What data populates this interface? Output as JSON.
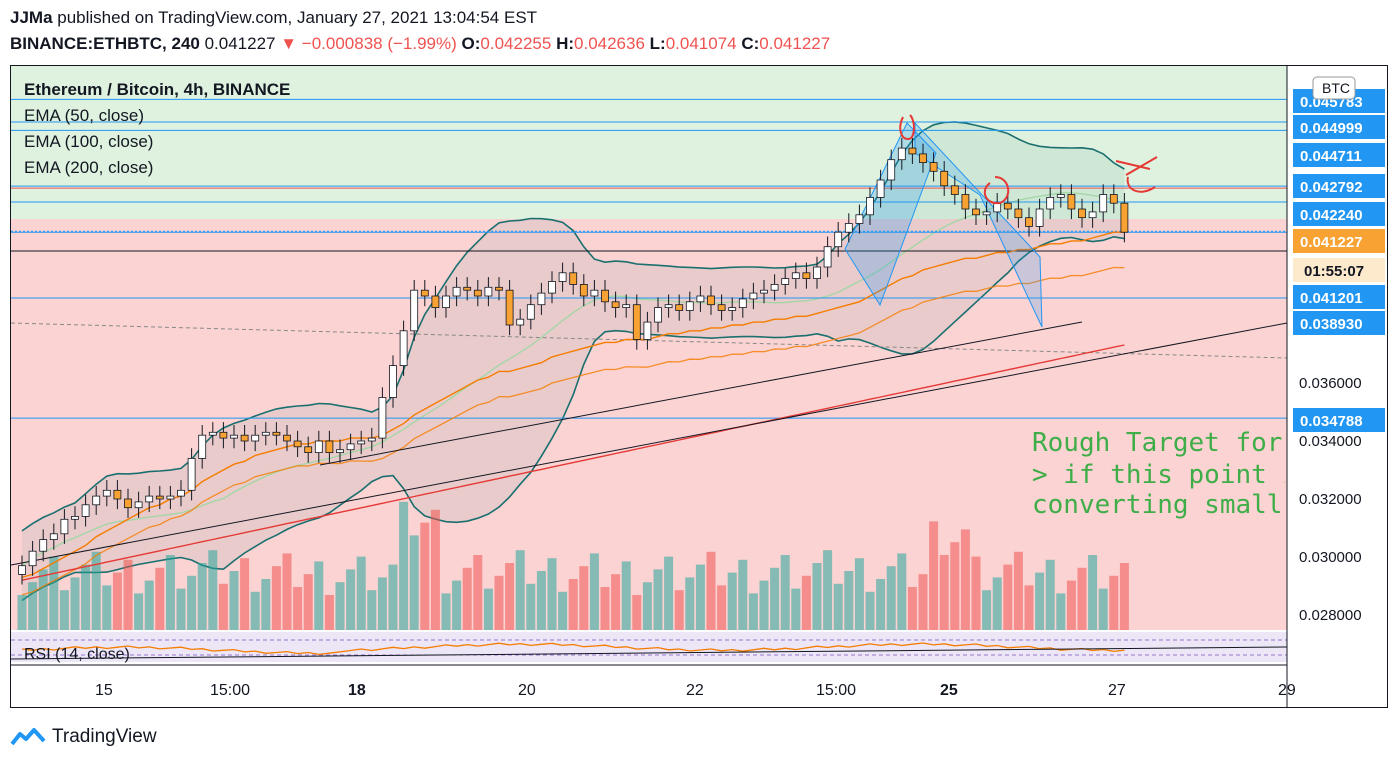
{
  "header": {
    "author": "JJMa",
    "published_text": "published on TradingView.com, January 27, 2021 13:04:54 EST",
    "symbol": "BINANCE:ETHBTC, 240",
    "last": "0.041227",
    "change": "▼ −0.000838 (−1.99%)",
    "o_label": "O:",
    "o": "0.042255",
    "h_label": "H:",
    "h": "0.042636",
    "l_label": "L:",
    "l": "0.041074",
    "c_label": "C:",
    "c": "0.041227"
  },
  "legend": {
    "title": "Ethereum / Bitcoin, 4h, BINANCE",
    "ema50": "EMA (50, close)",
    "ema100": "EMA (100, close)",
    "ema200": "EMA (200, close)",
    "rsi": "RSI (14, close)"
  },
  "annotation": {
    "line1": "Rough Target for re",
    "line2": "> if this point is rea",
    "line3": "converting small ar"
  },
  "footer": {
    "brand": "TradingView"
  },
  "chart_data": {
    "type": "candlestick",
    "currency_label": "BTC",
    "x_ticks": [
      "15",
      "15:00",
      "18",
      "20",
      "22",
      "15:00",
      "25",
      "27",
      "29"
    ],
    "y_ticks": [
      "0.036000",
      "0.034000",
      "0.032000",
      "0.030000",
      "0.028000"
    ],
    "price_labels": [
      {
        "text": "0.045783",
        "kind": "level"
      },
      {
        "text": "0.044999",
        "kind": "level"
      },
      {
        "text": "0.044711",
        "kind": "level"
      },
      {
        "text": "0.042792",
        "kind": "level"
      },
      {
        "text": "0.042240",
        "kind": "level"
      },
      {
        "text": "0.041227",
        "kind": "last"
      },
      {
        "text": "01:55:07",
        "kind": "countdown"
      },
      {
        "text": "0.041201",
        "kind": "level"
      },
      {
        "text": "0.038930",
        "kind": "level"
      },
      {
        "text": "0.034788",
        "kind": "level"
      }
    ],
    "colors": {
      "up": "#26a69a",
      "down": "#ef5350",
      "candle_orange": "#f7a233",
      "zone_green": "#dff2df",
      "zone_red": "#fbd3d3",
      "level_line": "#2196f3",
      "bollinger": "#1b6f6f",
      "ema50": "#f57c00",
      "ema200": "#e53935",
      "channel": "#2196f3",
      "annotation": "#3fae49",
      "badge": "#2196f3",
      "last_badge": "#f7a233"
    },
    "candles_close": [
      0.0297,
      0.0302,
      0.0306,
      0.0308,
      0.0313,
      0.0314,
      0.0318,
      0.0321,
      0.0323,
      0.032,
      0.0317,
      0.0319,
      0.0321,
      0.032,
      0.0321,
      0.0323,
      0.0334,
      0.0342,
      0.0343,
      0.0341,
      0.0342,
      0.034,
      0.0342,
      0.0343,
      0.0342,
      0.034,
      0.0338,
      0.0336,
      0.034,
      0.0336,
      0.0337,
      0.0339,
      0.034,
      0.0341,
      0.0355,
      0.0366,
      0.0378,
      0.0392,
      0.039,
      0.0386,
      0.039,
      0.0393,
      0.0392,
      0.039,
      0.0393,
      0.0392,
      0.038,
      0.0382,
      0.0387,
      0.0391,
      0.0395,
      0.0398,
      0.0394,
      0.039,
      0.0392,
      0.0388,
      0.0386,
      0.0387,
      0.0375,
      0.0381,
      0.0386,
      0.0387,
      0.0385,
      0.0388,
      0.039,
      0.0387,
      0.0385,
      0.0386,
      0.0389,
      0.0391,
      0.0392,
      0.0394,
      0.0396,
      0.0398,
      0.0396,
      0.04,
      0.0407,
      0.0412,
      0.0415,
      0.0418,
      0.0424,
      0.043,
      0.0437,
      0.0441,
      0.0439,
      0.0436,
      0.0433,
      0.0428,
      0.0425,
      0.042,
      0.0418,
      0.0419,
      0.0422,
      0.042,
      0.0417,
      0.0414,
      0.042,
      0.0424,
      0.0425,
      0.042,
      0.0417,
      0.0419,
      0.0425,
      0.0422,
      0.0412
    ],
    "ema50": [
      0.0293,
      0.0294,
      0.0296,
      0.0298,
      0.03,
      0.0302,
      0.0304,
      0.0307,
      0.0309,
      0.0311,
      0.0313,
      0.0315,
      0.0317,
      0.0318,
      0.032,
      0.0321,
      0.0323,
      0.0326,
      0.0328,
      0.033,
      0.0332,
      0.0333,
      0.0335,
      0.0336,
      0.0337,
      0.0338,
      0.0339,
      0.0339,
      0.034,
      0.034,
      0.034,
      0.0341,
      0.0341,
      0.0341,
      0.0342,
      0.0344,
      0.0346,
      0.0349,
      0.0351,
      0.0353,
      0.0355,
      0.0357,
      0.0359,
      0.0361,
      0.0362,
      0.0364,
      0.0364,
      0.0365,
      0.0366,
      0.0367,
      0.0369,
      0.037,
      0.0371,
      0.0372,
      0.0373,
      0.0374,
      0.0374,
      0.0375,
      0.0375,
      0.0375,
      0.0376,
      0.0377,
      0.0377,
      0.0378,
      0.0378,
      0.0379,
      0.0379,
      0.038,
      0.038,
      0.0381,
      0.0381,
      0.0382,
      0.0382,
      0.0383,
      0.0383,
      0.0384,
      0.0385,
      0.0386,
      0.0387,
      0.0388,
      0.039,
      0.0392,
      0.0394,
      0.0396,
      0.0397,
      0.0399,
      0.04,
      0.0401,
      0.0402,
      0.0403,
      0.0403,
      0.0404,
      0.0405,
      0.0405,
      0.0406,
      0.0406,
      0.0407,
      0.0408,
      0.0408,
      0.0409,
      0.0409,
      0.041,
      0.0411,
      0.0412,
      0.0412
    ]
  }
}
